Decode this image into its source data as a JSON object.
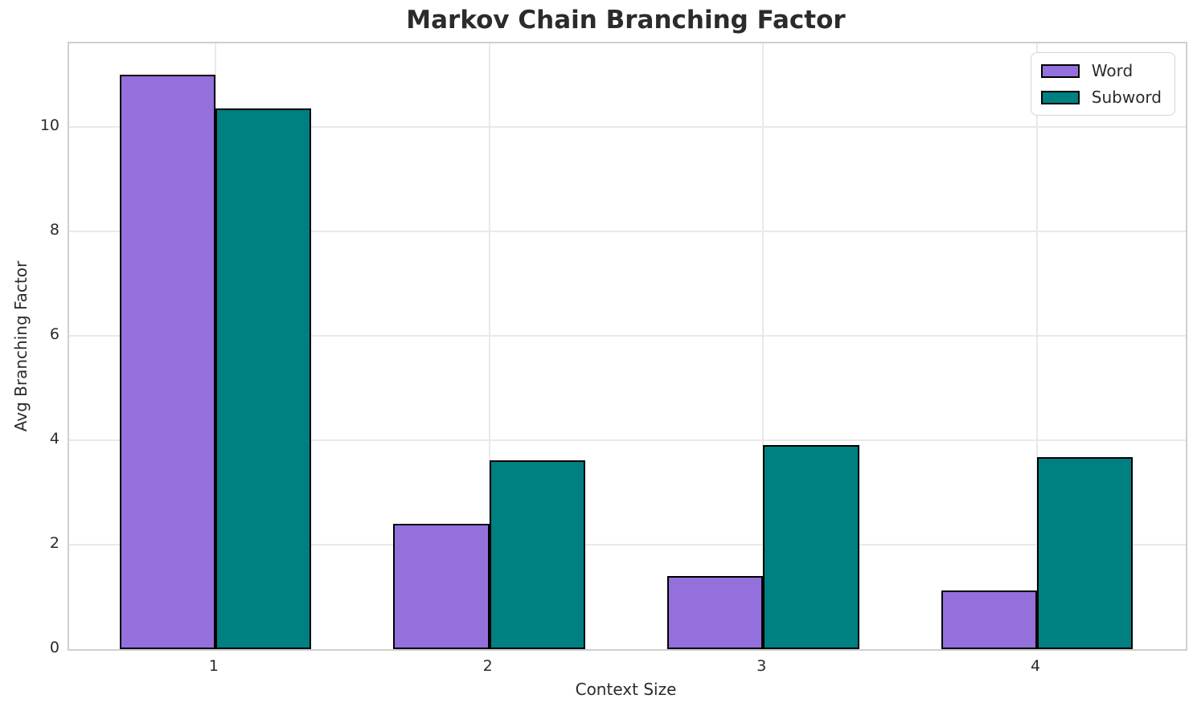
{
  "chart_data": {
    "type": "bar",
    "title": "Markov Chain Branching Factor",
    "xlabel": "Context Size",
    "ylabel": "Avg Branching Factor",
    "categories": [
      "1",
      "2",
      "3",
      "4"
    ],
    "x_positions": [
      1,
      2,
      3,
      4
    ],
    "series": [
      {
        "name": "Word",
        "color": "#9370DB",
        "offset": -0.175,
        "values": [
          11.0,
          2.4,
          1.4,
          1.13
        ]
      },
      {
        "name": "Subword",
        "color": "#008080",
        "offset": 0.175,
        "values": [
          10.36,
          3.62,
          3.91,
          3.68
        ]
      }
    ],
    "bar_width": 0.35,
    "bar_edge_color": "#000000",
    "xlim": [
      0.466,
      4.543
    ],
    "ylim": [
      0,
      11.6
    ],
    "yticks": [
      0,
      2,
      4,
      6,
      8,
      10
    ],
    "grid": true,
    "grid_color": "#e9e9e9",
    "spine_color": "#cfcfcf",
    "text_color": "#2b2b2b",
    "legend_position": "upper right"
  }
}
